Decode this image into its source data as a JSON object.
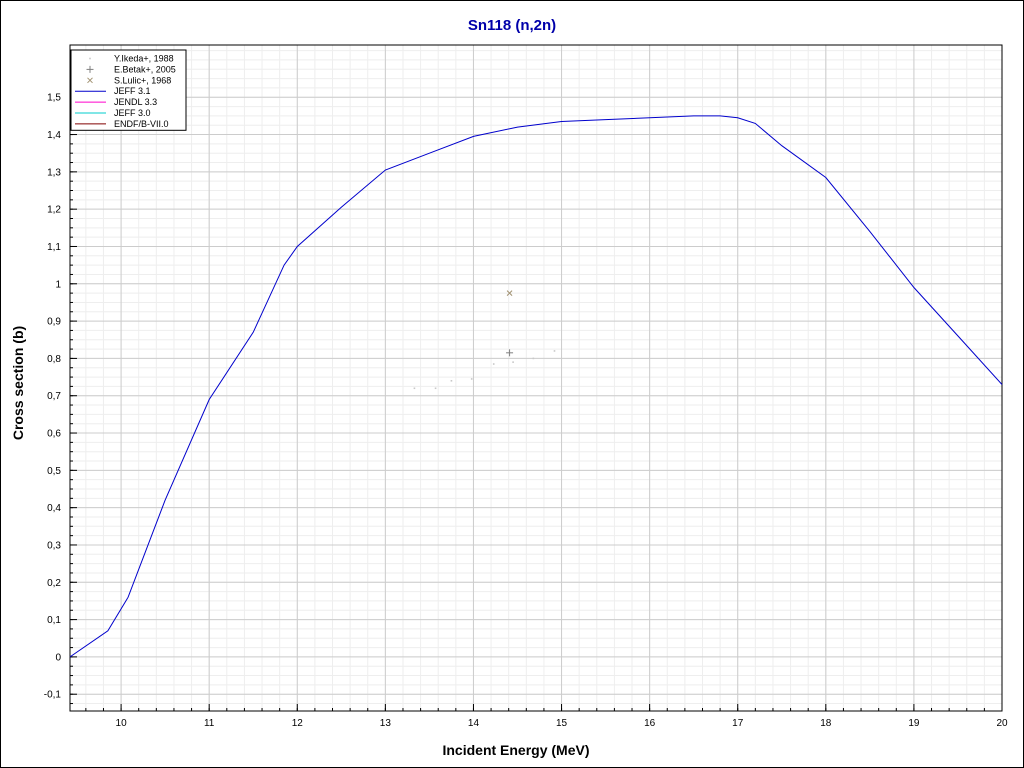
{
  "chart_data": {
    "type": "line",
    "title": "Sn118 (n,2n)",
    "xlabel": "Incident Energy (MeV)",
    "ylabel": "Cross section (b)",
    "xlim": [
      9.42,
      20.0
    ],
    "ylim": [
      -0.145,
      1.64
    ],
    "x_ticks": [
      "10",
      "11",
      "12",
      "13",
      "14",
      "15",
      "16",
      "17",
      "18",
      "19",
      "20"
    ],
    "y_ticks": [
      "-0,1",
      "0",
      "0,1",
      "0,2",
      "0,3",
      "0,4",
      "0,5",
      "0,6",
      "0,7",
      "0,8",
      "0,9",
      "1",
      "1,1",
      "1,2",
      "1,3",
      "1,4",
      "1,5"
    ],
    "grid": true,
    "legend_position": "top-left",
    "title_color": "#0000aa",
    "series": [
      {
        "name": "Y.Ikeda+, 1988",
        "kind": "scatter",
        "marker": "dot",
        "color": "#c8c8c8",
        "x": [
          13.33,
          13.57,
          13.75,
          13.98,
          14.23,
          14.45,
          14.68,
          14.92
        ],
        "y": [
          0.72,
          0.72,
          0.74,
          0.745,
          0.785,
          0.79,
          0.8,
          0.82
        ]
      },
      {
        "name": "E.Betak+, 2005",
        "kind": "scatter",
        "marker": "plus",
        "color": "#808080",
        "x": [
          14.41
        ],
        "y": [
          0.815
        ]
      },
      {
        "name": "S.Lulic+, 1968",
        "kind": "scatter",
        "marker": "cross",
        "color": "#a09070",
        "x": [
          14.41
        ],
        "y": [
          0.975
        ]
      },
      {
        "name": "JEFF 3.1",
        "kind": "line",
        "color": "#0000cc",
        "x": [
          9.42,
          9.85,
          10.08,
          10.5,
          11.0,
          11.5,
          11.85,
          12.0,
          12.5,
          13.0,
          13.5,
          14.0,
          14.5,
          15.0,
          15.5,
          16.0,
          16.5,
          16.8,
          17.0,
          17.2,
          17.5,
          18.0,
          18.5,
          19.0,
          19.5,
          20.0
        ],
        "y": [
          0.0,
          0.07,
          0.16,
          0.42,
          0.69,
          0.87,
          1.05,
          1.1,
          1.205,
          1.305,
          1.35,
          1.395,
          1.42,
          1.435,
          1.44,
          1.445,
          1.45,
          1.45,
          1.445,
          1.43,
          1.37,
          1.285,
          1.14,
          0.99,
          0.86,
          0.73
        ]
      },
      {
        "name": "JENDL 3.3",
        "kind": "line",
        "color": "#ff00cc",
        "x": [],
        "y": []
      },
      {
        "name": "JEFF 3.0",
        "kind": "line",
        "color": "#00cccc",
        "x": [],
        "y": []
      },
      {
        "name": "ENDF/B-VII.0",
        "kind": "line",
        "color": "#800000",
        "x": [],
        "y": []
      }
    ]
  }
}
